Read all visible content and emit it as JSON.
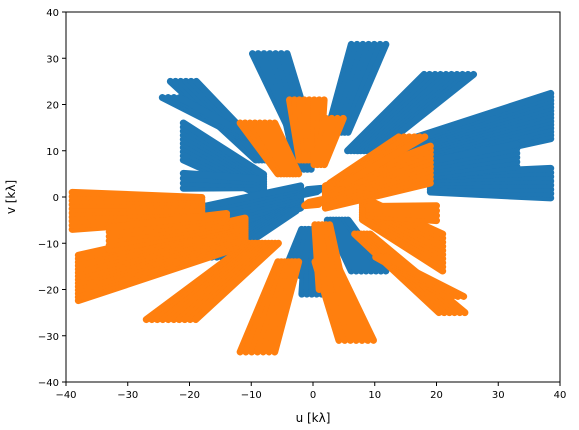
{
  "chart_data": {
    "type": "scatter",
    "title": "",
    "xlabel": "u [kλ]",
    "ylabel": "v [kλ]",
    "xlim": [
      -40,
      40
    ],
    "ylim": [
      -40,
      40
    ],
    "xticks": [
      -40,
      -30,
      -20,
      -10,
      0,
      10,
      20,
      30,
      40
    ],
    "yticks": [
      -40,
      -30,
      -20,
      -10,
      0,
      10,
      20,
      30,
      40
    ],
    "xtick_labels": [
      "−40",
      "−30",
      "−20",
      "−10",
      "0",
      "10",
      "20",
      "30",
      "40"
    ],
    "ytick_labels": [
      "−40",
      "−30",
      "−20",
      "−10",
      "0",
      "10",
      "20",
      "30",
      "40"
    ],
    "grid": false,
    "legend": "none",
    "series": [
      {
        "color": "#1f77b4",
        "tracks": [
          {
            "from": [
              38.5,
              17.5
            ],
            "to": [
              11.0,
              7.5
            ],
            "count": 14,
            "spread": [
              0.0,
              0.7
            ]
          },
          {
            "from": [
              38.5,
              3.0
            ],
            "to": [
              19.0,
              3.0
            ],
            "count": 8,
            "spread": [
              0.0,
              0.8
            ]
          },
          {
            "from": [
              33.0,
              9.0
            ],
            "to": [
              14.0,
              5.0
            ],
            "count": 6,
            "spread": [
              0.0,
              0.8
            ]
          },
          {
            "from": [
              22.0,
              26.5
            ],
            "to": [
              8.0,
              10.0
            ],
            "count": 10,
            "spread": [
              0.8,
              0.0
            ]
          },
          {
            "from": [
              9.0,
              33.0
            ],
            "to": [
              4.0,
              14.0
            ],
            "count": 7,
            "spread": [
              0.8,
              0.0
            ]
          },
          {
            "from": [
              -7.0,
              31.0
            ],
            "to": [
              -2.0,
              14.0
            ],
            "count": 7,
            "spread": [
              0.8,
              0.0
            ]
          },
          {
            "from": [
              -3.0,
              20.0
            ],
            "to": [
              -1.5,
              6.0
            ],
            "count": 5,
            "spread": [
              0.8,
              0.0
            ]
          },
          {
            "from": [
              -21.0,
              25.0
            ],
            "to": [
              -8.0,
              8.0
            ],
            "count": 6,
            "spread": [
              0.7,
              0.0
            ]
          },
          {
            "from": [
              -23.0,
              21.5
            ],
            "to": [
              -11.0,
              13.0
            ],
            "count": 4,
            "spread": [
              0.7,
              0.0
            ]
          },
          {
            "from": [
              -21.0,
              12.0
            ],
            "to": [
              -8.0,
              2.5
            ],
            "count": 10,
            "spread": [
              0.0,
              0.8
            ]
          },
          {
            "from": [
              -21.0,
              3.5
            ],
            "to": [
              -9.0,
              3.0
            ],
            "count": 4,
            "spread": [
              0.0,
              0.8
            ]
          },
          {
            "from": [
              -21.0,
              -7.0
            ],
            "to": [
              -2.0,
              0.0
            ],
            "count": 10,
            "spread": [
              0.0,
              0.8
            ]
          },
          {
            "from": [
              -16.0,
              -13.0
            ],
            "to": [
              -4.0,
              -3.0
            ],
            "count": 6,
            "spread": [
              0.7,
              0.0
            ]
          },
          {
            "from": [
              1.0,
              -21.0
            ],
            "to": [
              0.5,
              -8.0
            ],
            "count": 8,
            "spread": [
              0.7,
              0.0
            ]
          },
          {
            "from": [
              9.0,
              -16.0
            ],
            "to": [
              4.0,
              -5.0
            ],
            "count": 8,
            "spread": [
              0.7,
              0.0
            ]
          },
          {
            "from": [
              -3.5,
              -17.0
            ],
            "to": [
              -1.0,
              -7.0
            ],
            "count": 4,
            "spread": [
              0.7,
              0.0
            ]
          },
          {
            "from": [
              -1.5,
              1.0
            ],
            "to": [
              1.0,
              1.5
            ],
            "count": 4,
            "spread": [
              0.3,
              0.3
            ]
          }
        ]
      },
      {
        "color": "#ff7f0e",
        "tracks": [
          {
            "from": [
              -39.0,
              -3.0
            ],
            "to": [
              -18.0,
              -2.5
            ],
            "count": 10,
            "spread": [
              0.0,
              0.8
            ]
          },
          {
            "from": [
              -38.0,
              -17.5
            ],
            "to": [
              -11.0,
              -7.5
            ],
            "count": 14,
            "spread": [
              0.0,
              0.7
            ]
          },
          {
            "from": [
              -33.0,
              -9.0
            ],
            "to": [
              -14.0,
              -5.0
            ],
            "count": 6,
            "spread": [
              0.0,
              0.8
            ]
          },
          {
            "from": [
              -23.0,
              -26.5
            ],
            "to": [
              -8.0,
              -10.0
            ],
            "count": 10,
            "spread": [
              0.8,
              0.0
            ]
          },
          {
            "from": [
              -9.0,
              -33.5
            ],
            "to": [
              -4.0,
              -14.0
            ],
            "count": 7,
            "spread": [
              0.8,
              0.0
            ]
          },
          {
            "from": [
              7.0,
              -31.0
            ],
            "to": [
              2.0,
              -14.0
            ],
            "count": 7,
            "spread": [
              0.8,
              0.0
            ]
          },
          {
            "from": [
              3.0,
              -20.0
            ],
            "to": [
              1.5,
              -6.0
            ],
            "count": 5,
            "spread": [
              0.8,
              0.0
            ]
          },
          {
            "from": [
              22.5,
              -25.0
            ],
            "to": [
              8.0,
              -8.0
            ],
            "count": 6,
            "spread": [
              0.7,
              0.0
            ]
          },
          {
            "from": [
              23.0,
              -21.5
            ],
            "to": [
              11.0,
              -13.0
            ],
            "count": 4,
            "spread": [
              0.7,
              0.0
            ]
          },
          {
            "from": [
              21.0,
              -12.0
            ],
            "to": [
              8.0,
              -2.5
            ],
            "count": 10,
            "spread": [
              0.0,
              0.8
            ]
          },
          {
            "from": [
              20.0,
              -3.5
            ],
            "to": [
              9.0,
              -3.0
            ],
            "count": 4,
            "spread": [
              0.0,
              0.8
            ]
          },
          {
            "from": [
              19.0,
              7.0
            ],
            "to": [
              2.0,
              0.0
            ],
            "count": 10,
            "spread": [
              0.0,
              0.8
            ]
          },
          {
            "from": [
              16.0,
              13.0
            ],
            "to": [
              4.0,
              3.0
            ],
            "count": 6,
            "spread": [
              0.7,
              0.0
            ]
          },
          {
            "from": [
              -1.0,
              21.0
            ],
            "to": [
              -0.5,
              8.0
            ],
            "count": 8,
            "spread": [
              0.7,
              0.0
            ]
          },
          {
            "from": [
              -9.0,
              16.0
            ],
            "to": [
              -4.0,
              5.0
            ],
            "count": 8,
            "spread": [
              0.7,
              0.0
            ]
          },
          {
            "from": [
              3.5,
              17.0
            ],
            "to": [
              1.0,
              7.0
            ],
            "count": 4,
            "spread": [
              0.7,
              0.0
            ]
          },
          {
            "from": [
              1.5,
              -1.0
            ],
            "to": [
              -1.0,
              -1.5
            ],
            "count": 4,
            "spread": [
              0.3,
              0.3
            ]
          }
        ]
      }
    ]
  }
}
